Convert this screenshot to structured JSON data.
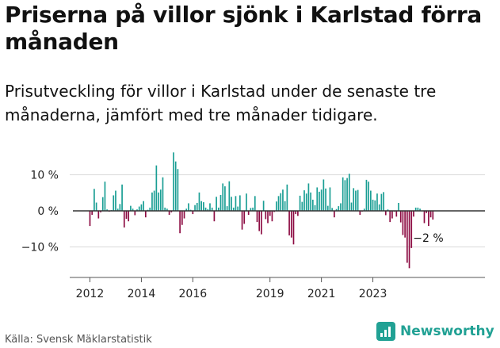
{
  "title": "Priserna på villor sjönk i Karlstad förra månaden",
  "subtitle": "Prisutveckling för villor i Karlstad under de senaste tre månaderna, jämfört med tre månader tidigare.",
  "source": "Källa: Svensk Mäklarstatistik",
  "brand": {
    "name": "Newsworthy",
    "icon": "newsworthy-logo-icon",
    "color": "#21a194"
  },
  "colors": {
    "positive": "#1a9e94",
    "negative": "#8c0b42",
    "grid": "#d9d9d9",
    "zero_line": "#333333"
  },
  "chart_data": {
    "type": "bar",
    "title": "",
    "xlabel": "",
    "ylabel": "",
    "unit": "%",
    "ylim": [
      -20,
      16
    ],
    "grid": true,
    "legend": "none",
    "y_ticks": [
      {
        "value": 10,
        "label": "10 %"
      },
      {
        "value": 0,
        "label": "0 %"
      },
      {
        "value": -10,
        "label": "−10 %"
      }
    ],
    "x_ticks": [
      {
        "month": 0,
        "label": "2012"
      },
      {
        "month": 24,
        "label": "2014"
      },
      {
        "month": 48,
        "label": "2016"
      },
      {
        "month": 84,
        "label": "2019"
      },
      {
        "month": 108,
        "label": "2021"
      },
      {
        "month": 132,
        "label": "2023"
      }
    ],
    "x_start": "2012-01",
    "annotation": {
      "text": "−2 %",
      "value": -2,
      "month": 150
    },
    "values": [
      -4.2,
      -1.1,
      6.1,
      2.3,
      -2.1,
      -0.4,
      3.8,
      8.1,
      0.4,
      -0.2,
      0.2,
      4.3,
      5.6,
      0.6,
      1.9,
      7.3,
      -4.6,
      -2.2,
      -2.9,
      1.4,
      0.6,
      -1.2,
      0.4,
      1.2,
      1.8,
      2.7,
      -1.8,
      0.3,
      0.9,
      5.1,
      5.6,
      12.6,
      5.1,
      5.9,
      9.3,
      0.9,
      0.6,
      -1.1,
      -0.4,
      16.2,
      13.7,
      11.6,
      -6.2,
      -3.9,
      -2.1,
      0.6,
      2.1,
      0.3,
      -0.9,
      1.6,
      2.2,
      5.1,
      2.7,
      2.4,
      0.9,
      0.5,
      2.1,
      0.9,
      -2.9,
      3.9,
      0.9,
      4.4,
      7.6,
      6.8,
      1.3,
      8.2,
      3.9,
      0.9,
      4.1,
      1.2,
      4.3,
      -5.2,
      -3.6,
      4.8,
      -1.1,
      0.8,
      0.9,
      4.1,
      -3.1,
      -5.6,
      -6.5,
      2.8,
      -2.3,
      -3.4,
      -1.4,
      -2.9,
      -0.3,
      2.6,
      4.1,
      4.9,
      5.9,
      2.7,
      7.3,
      -6.8,
      -7.4,
      -9.3,
      -0.9,
      -1.4,
      4.2,
      2.5,
      5.7,
      4.8,
      7.6,
      5.1,
      3.1,
      1.6,
      6.5,
      5.3,
      5.9,
      8.7,
      6.2,
      1.4,
      6.5,
      0.8,
      -1.8,
      0.5,
      1.3,
      2.1,
      9.3,
      8.5,
      9.1,
      10.3,
      2.3,
      6.3,
      5.6,
      5.8,
      -1.1,
      -0.2,
      0.6,
      8.6,
      8.1,
      5.6,
      3.1,
      2.9,
      4.8,
      1.8,
      4.7,
      5.2,
      -1.2,
      0.4,
      -3.1,
      -2.1,
      -0.2,
      -1.6,
      2.2,
      -3.2,
      -6.7,
      -7.4,
      -14.4,
      -15.9,
      -10.3,
      -1.6,
      0.9,
      0.9,
      0.6,
      -0.1,
      -3.4,
      -0.6,
      -4.2,
      -1.8,
      -2.4
    ]
  }
}
